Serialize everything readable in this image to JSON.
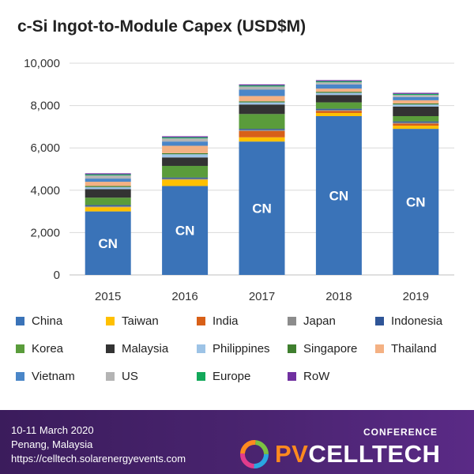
{
  "chart_data": {
    "type": "bar",
    "stacked": true,
    "title": "c-Si Ingot-to-Module Capex (USD$M)",
    "xlabel": "",
    "ylabel": "",
    "ylim": [
      0,
      10000
    ],
    "yticks": [
      0,
      2000,
      4000,
      6000,
      8000,
      10000
    ],
    "ytick_labels": [
      "0",
      "2,000",
      "4,000",
      "6,000",
      "8,000",
      "10,000"
    ],
    "categories": [
      "2015",
      "2016",
      "2017",
      "2018",
      "2019"
    ],
    "bar_label": "CN",
    "grid": true,
    "legend_position": "bottom",
    "series": [
      {
        "name": "China",
        "color": "#3a73b8",
        "values": [
          3000,
          4200,
          6300,
          7500,
          6900
        ]
      },
      {
        "name": "Taiwan",
        "color": "#ffc000",
        "values": [
          200,
          300,
          200,
          150,
          150
        ]
      },
      {
        "name": "India",
        "color": "#d86018",
        "values": [
          0,
          0,
          300,
          100,
          100
        ]
      },
      {
        "name": "Japan",
        "color": "#8c8c8c",
        "values": [
          50,
          50,
          50,
          50,
          50
        ]
      },
      {
        "name": "Indonesia",
        "color": "#2f5597",
        "values": [
          50,
          50,
          50,
          50,
          50
        ]
      },
      {
        "name": "Korea",
        "color": "#5a9c3b",
        "values": [
          350,
          550,
          700,
          300,
          250
        ]
      },
      {
        "name": "Malaysia",
        "color": "#333333",
        "values": [
          400,
          400,
          450,
          350,
          450
        ]
      },
      {
        "name": "Philippines",
        "color": "#9dc3e6",
        "values": [
          100,
          150,
          100,
          100,
          100
        ]
      },
      {
        "name": "Singapore",
        "color": "#3f7f2e",
        "values": [
          50,
          50,
          50,
          50,
          50
        ]
      },
      {
        "name": "Thailand",
        "color": "#f4b183",
        "values": [
          200,
          350,
          250,
          150,
          150
        ]
      },
      {
        "name": "Vietnam",
        "color": "#4a86c8",
        "values": [
          150,
          200,
          300,
          200,
          150
        ]
      },
      {
        "name": "US",
        "color": "#b4b4b4",
        "values": [
          150,
          150,
          150,
          100,
          100
        ]
      },
      {
        "name": "Europe",
        "color": "#13a85a",
        "values": [
          50,
          50,
          50,
          50,
          50
        ]
      },
      {
        "name": "RoW",
        "color": "#7030a0",
        "values": [
          50,
          50,
          50,
          50,
          50
        ]
      }
    ]
  },
  "footer": {
    "date": "10-11 March 2020",
    "place": "Penang, Malaysia",
    "url": "https://celltech.solarenergyevents.com",
    "conference_word": "CONFERENCE",
    "brand_pv": "PV",
    "brand_celltech": "CELLTECH",
    "logo_icon": "pvcelltech-ring-logo-icon"
  }
}
